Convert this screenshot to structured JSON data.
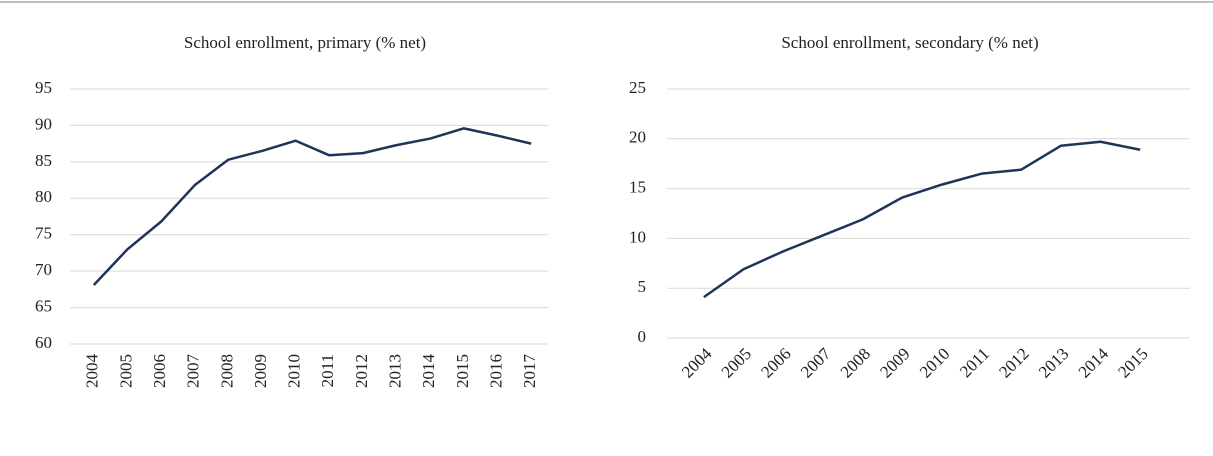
{
  "chart_data": [
    {
      "type": "line",
      "title": "School enrollment, primary (% net)",
      "categories": [
        "2004",
        "2005",
        "2006",
        "2007",
        "2008",
        "2009",
        "2010",
        "2011",
        "2012",
        "2013",
        "2014",
        "2015",
        "2016",
        "2017"
      ],
      "series": [
        {
          "color": "#1f3557",
          "values": [
            68.1,
            73.0,
            76.8,
            81.8,
            85.3,
            86.5,
            87.9,
            85.9,
            86.2,
            87.3,
            88.2,
            89.6,
            88.6,
            87.5
          ]
        }
      ],
      "ylim": [
        60,
        95
      ],
      "yticks": [
        60,
        65,
        70,
        75,
        80,
        85,
        90,
        95
      ],
      "grid": true
    },
    {
      "type": "line",
      "title": "School enrollment, secondary (% net)",
      "categories": [
        "2004",
        "2005",
        "2006",
        "2007",
        "2008",
        "2009",
        "2010",
        "2011",
        "2012",
        "2013",
        "2014",
        "2015"
      ],
      "series": [
        {
          "color": "#1f3557",
          "values": [
            4.1,
            6.9,
            8.7,
            10.3,
            11.9,
            14.1,
            15.4,
            16.5,
            16.9,
            19.3,
            19.7,
            18.9
          ]
        }
      ],
      "ylim": [
        0,
        25
      ],
      "yticks": [
        0,
        5,
        10,
        15,
        20,
        25
      ],
      "grid": true
    }
  ]
}
